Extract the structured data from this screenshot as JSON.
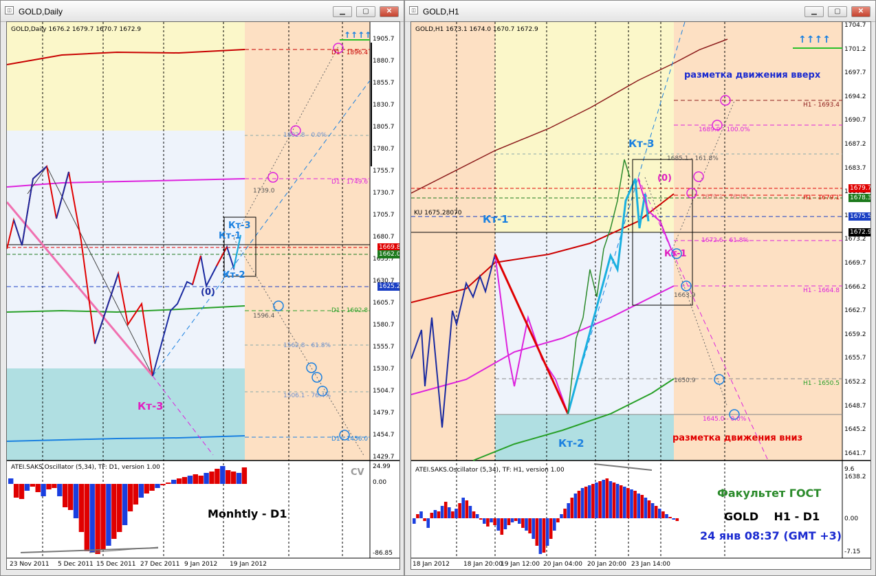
{
  "left_window": {
    "title": "GOLD,Daily",
    "header": "GOLD,Daily  1676.2 1679.7 1670.7 1672.9",
    "osc_header": "ATEI.SAKS.Oscillator (5,34), TF: D1, version 1.00",
    "osc_cv": "CV",
    "caption": "Monhtly - D1",
    "price_ticks": [
      "1905.7",
      "1880.7",
      "1855.7",
      "1830.7",
      "1805.7",
      "1780.7",
      "1755.7",
      "1730.7",
      "1705.7",
      "1680.7",
      "1655.7",
      "1630.7",
      "1605.7",
      "1580.7",
      "1555.7",
      "1530.7",
      "1504.7",
      "1479.7",
      "1454.7",
      "1429.7"
    ],
    "osc_ticks": [
      "24.99",
      "0.00",
      "-86.85"
    ],
    "date_ticks": [
      "23 Nov 2011",
      "5 Dec 2011",
      "15 Dec 2011",
      "27 Dec 2011",
      "9 Jan 2012",
      "19 Jan 2012"
    ],
    "price_tags": [
      {
        "text": "1669.8",
        "color": "#e00000"
      },
      {
        "text": "1662.0",
        "color": "#1c7a1c"
      },
      {
        "text": "1625.2",
        "color": "#1a3fc4"
      }
    ],
    "annotations": {
      "d1_1896": "D1 - 1896.4",
      "fib_0": "1802.8 - 0.0%",
      "lvl_1739": "1739.0",
      "d1_1749": "D1 - 1749.6",
      "d1_1602": "D1 - 1602.8",
      "lvl_1596": "1596.4",
      "fib_618": "1562.8 - 61.8%",
      "fib_764": "1506.1 - 76.4%",
      "d1_1456": "D1 - 1456.0",
      "kt3_top": "Кт-3",
      "kt1": "Кт-1",
      "kt2": "Кт-2",
      "zero": "(0)",
      "kt3_bottom": "Кт-3"
    }
  },
  "right_window": {
    "title": "GOLD,H1",
    "header": "GOLD,H1  1673.1 1674.0 1670.7 1672.9",
    "ku_line": "KU 1675.28070",
    "osc_header": "ATEI.SAKS.Oscillator (5,34), TF: H1, version 1.00",
    "price_ticks": [
      "1704.7",
      "1701.2",
      "1697.7",
      "1694.2",
      "1690.7",
      "1687.2",
      "1683.7",
      "1680.2",
      "1676.7",
      "1673.2",
      "1669.7",
      "1666.2",
      "1662.7",
      "1659.2",
      "1655.7",
      "1652.2",
      "1648.7",
      "1645.2",
      "1641.7",
      "1638.2"
    ],
    "osc_ticks": [
      "9.6",
      "0.00",
      "-7.15"
    ],
    "date_ticks": [
      "18 Jan 2012",
      "18 Jan 20:00",
      "19 Jan 12:00",
      "20 Jan 04:00",
      "20 Jan 20:00",
      "23 Jan 14:00"
    ],
    "price_tags": [
      {
        "text": "1679.7",
        "color": "#e00000"
      },
      {
        "text": "1678.3",
        "color": "#1c7a1c"
      },
      {
        "text": "1675.5",
        "color": "#1a3fc4"
      },
      {
        "text": "1672.9",
        "color": "#000000"
      }
    ],
    "annotations": {
      "up_markup": "разметка движения вверх",
      "down_markup": "разметка движения вниз",
      "h1_1693": "H1 - 1693.4",
      "fib_100": "1689.9 - 100.0%",
      "fib_1618": "1685.1 - 161.8%",
      "kt3": "Кт-3",
      "zero": "(0)",
      "lvl_1679": "1679.1 - 76.4%",
      "h1_1679": "H1 - 1679.1",
      "kt1": "Кт-1",
      "fib_618": "1672.6 - 61.8%",
      "kt1_pink": "Кт-1",
      "h1_1664": "H1 - 1664.8",
      "lvl_1663": "1663.9",
      "h1_1650": "H1 - 1650.5",
      "lvl_1650": "1650.9",
      "lvl_1645": "1645.0 - 0.0%",
      "kt2": "Кт-2"
    },
    "faculty": "Факультет ГОСТ",
    "pair_caption": "GOLD    H1 - D1",
    "timestamp": "24 янв 08:37 (GMT +3)"
  },
  "colors": {
    "zone_yellow": "#fbf7c9",
    "zone_blue": "#eef3fb",
    "zone_teal": "#b0dfe2",
    "zone_peach": "#fde0c3"
  }
}
